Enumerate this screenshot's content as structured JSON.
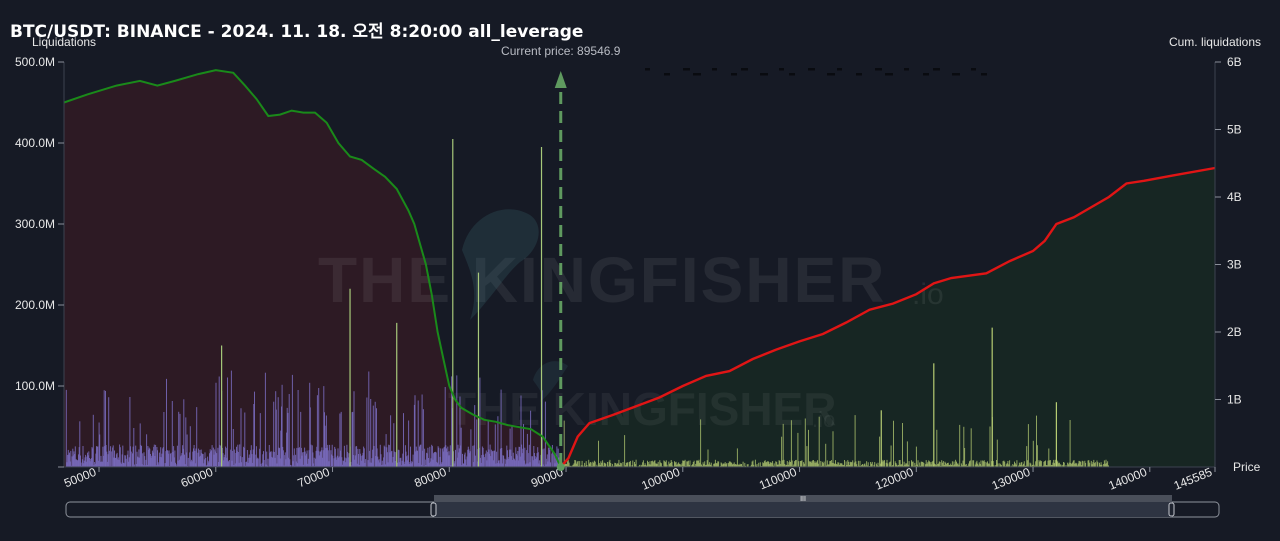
{
  "title": "BTC/USDT: BINANCE - 2024. 11. 18. 오전 8:20:00 all_leverage",
  "chart_data": {
    "type": "liquidation-heatmap",
    "left_axis": {
      "label": "Liquidations",
      "ticks": [
        {
          "v": 100,
          "t": "100.0M"
        },
        {
          "v": 200,
          "t": "200.0M"
        },
        {
          "v": 300,
          "t": "300.0M"
        },
        {
          "v": 400,
          "t": "400.0M"
        },
        {
          "v": 500,
          "t": "500.0M"
        }
      ],
      "ylim": [
        0,
        500
      ],
      "unit": "M"
    },
    "right_axis": {
      "label": "Cum. liquidations",
      "ticks": [
        {
          "v": 1,
          "t": "1B"
        },
        {
          "v": 2,
          "t": "2B"
        },
        {
          "v": 3,
          "t": "3B"
        },
        {
          "v": 4,
          "t": "4B"
        },
        {
          "v": 5,
          "t": "5B"
        },
        {
          "v": 6,
          "t": "6B"
        }
      ],
      "ylim": [
        0,
        6
      ],
      "unit": "B"
    },
    "x_axis": {
      "label": "Price",
      "xlim": [
        47000,
        145585
      ],
      "ticks": [
        "50000",
        "60000",
        "70000",
        "80000",
        "90000",
        "100000",
        "110000",
        "120000",
        "130000",
        "140000",
        "145585"
      ]
    },
    "current_price": {
      "label": "Current price: 89546.9",
      "value": 89546.9
    },
    "cum_long_liquidations": [
      [
        47000,
        5.4
      ],
      [
        49000,
        5.52
      ],
      [
        51500,
        5.65
      ],
      [
        53500,
        5.72
      ],
      [
        55000,
        5.65
      ],
      [
        56500,
        5.72
      ],
      [
        58500,
        5.82
      ],
      [
        60000,
        5.88
      ],
      [
        61500,
        5.84
      ],
      [
        62500,
        5.65
      ],
      [
        63500,
        5.45
      ],
      [
        64500,
        5.2
      ],
      [
        65500,
        5.22
      ],
      [
        66500,
        5.28
      ],
      [
        67500,
        5.25
      ],
      [
        68500,
        5.25
      ],
      [
        69500,
        5.1
      ],
      [
        70500,
        4.8
      ],
      [
        71500,
        4.6
      ],
      [
        72500,
        4.55
      ],
      [
        73500,
        4.42
      ],
      [
        74500,
        4.3
      ],
      [
        75500,
        4.12
      ],
      [
        76500,
        3.8
      ],
      [
        77000,
        3.6
      ],
      [
        77500,
        3.3
      ],
      [
        78000,
        3.0
      ],
      [
        78500,
        2.55
      ],
      [
        79000,
        2.0
      ],
      [
        79500,
        1.6
      ],
      [
        80000,
        1.2
      ],
      [
        80500,
        1.0
      ],
      [
        81000,
        0.88
      ],
      [
        82000,
        0.78
      ],
      [
        83000,
        0.7
      ],
      [
        84000,
        0.67
      ],
      [
        85000,
        0.62
      ],
      [
        86000,
        0.59
      ],
      [
        87000,
        0.56
      ],
      [
        88000,
        0.45
      ],
      [
        89000,
        0.2
      ],
      [
        89546.9,
        0
      ]
    ],
    "cum_short_liquidations": [
      [
        89546.9,
        0
      ],
      [
        90200,
        0.13
      ],
      [
        91000,
        0.45
      ],
      [
        92000,
        0.65
      ],
      [
        94000,
        0.77
      ],
      [
        96000,
        0.9
      ],
      [
        98000,
        1.03
      ],
      [
        100000,
        1.2
      ],
      [
        102000,
        1.35
      ],
      [
        104000,
        1.42
      ],
      [
        106000,
        1.6
      ],
      [
        108000,
        1.74
      ],
      [
        110000,
        1.86
      ],
      [
        112000,
        1.97
      ],
      [
        114000,
        2.14
      ],
      [
        116000,
        2.33
      ],
      [
        118000,
        2.42
      ],
      [
        120000,
        2.56
      ],
      [
        121500,
        2.72
      ],
      [
        123000,
        2.8
      ],
      [
        126000,
        2.87
      ],
      [
        128000,
        3.05
      ],
      [
        130000,
        3.2
      ],
      [
        131000,
        3.35
      ],
      [
        132000,
        3.6
      ],
      [
        133500,
        3.7
      ],
      [
        135000,
        3.85
      ],
      [
        136500,
        4.0
      ],
      [
        138000,
        4.2
      ],
      [
        139500,
        4.24
      ],
      [
        142000,
        4.32
      ],
      [
        145585,
        4.43
      ]
    ],
    "liquidation_spikes": [
      {
        "price": 80300,
        "value": 405,
        "side": "long"
      },
      {
        "price": 87900,
        "value": 395,
        "side": "long"
      },
      {
        "price": 71500,
        "value": 220,
        "side": "long"
      },
      {
        "price": 75500,
        "value": 178,
        "side": "long"
      },
      {
        "price": 60500,
        "value": 150,
        "side": "long"
      },
      {
        "price": 82500,
        "value": 240,
        "side": "long"
      },
      {
        "price": 126500,
        "value": 172,
        "side": "short"
      },
      {
        "price": 121500,
        "value": 128,
        "side": "short"
      },
      {
        "price": 132000,
        "value": 80,
        "side": "short"
      },
      {
        "price": 117000,
        "value": 70,
        "side": "short"
      }
    ]
  },
  "watermark": "THE KINGFISHER",
  "watermark_suffix": ".io",
  "scrollbar": {
    "grip": "III"
  },
  "colors": {
    "long_line": "#1a8a1a",
    "short_line": "#e01515",
    "long_fill": "#2d1a24",
    "short_fill": "#172623",
    "long_bars": "#7a6cc0",
    "short_bars": "#b6cc73",
    "price_line": "#5f9a5f"
  }
}
